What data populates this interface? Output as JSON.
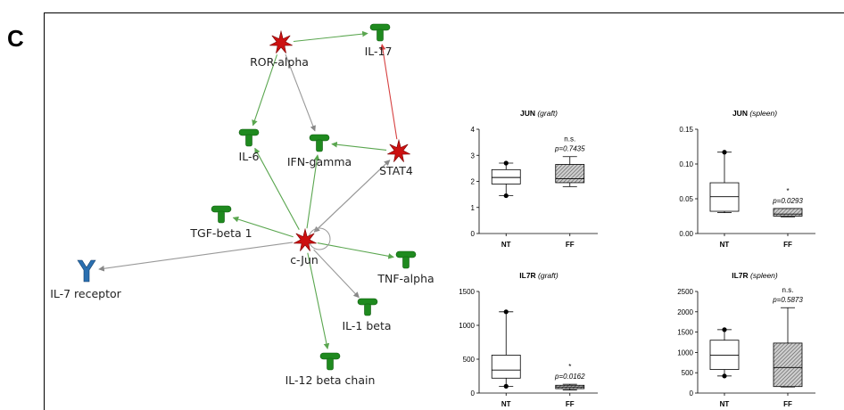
{
  "panel_letter": "C",
  "network": {
    "nodes": [
      {
        "id": "ror",
        "label": "ROR-alpha",
        "kind": "tf"
      },
      {
        "id": "il17",
        "label": "IL-17",
        "kind": "cytokine"
      },
      {
        "id": "il6",
        "label": "IL-6",
        "kind": "cytokine"
      },
      {
        "id": "ifng",
        "label": "IFN-gamma",
        "kind": "cytokine"
      },
      {
        "id": "stat4",
        "label": "STAT4",
        "kind": "tf"
      },
      {
        "id": "tgfb",
        "label": "TGF-beta 1",
        "kind": "cytokine"
      },
      {
        "id": "cjun",
        "label": "c-Jun",
        "kind": "tf"
      },
      {
        "id": "il7r",
        "label": "IL-7 receptor",
        "kind": "receptor"
      },
      {
        "id": "tnfa",
        "label": "TNF-alpha",
        "kind": "cytokine"
      },
      {
        "id": "il1b",
        "label": "IL-1 beta",
        "kind": "cytokine"
      },
      {
        "id": "il12b",
        "label": "IL-12 beta chain",
        "kind": "cytokine"
      }
    ],
    "edges": [
      {
        "from": "ror",
        "to": "il17",
        "color": "green"
      },
      {
        "from": "ror",
        "to": "il6",
        "color": "green"
      },
      {
        "from": "ror",
        "to": "ifng",
        "color": "gray"
      },
      {
        "from": "stat4",
        "to": "il17",
        "color": "red"
      },
      {
        "from": "stat4",
        "to": "ifng",
        "color": "green"
      },
      {
        "from": "stat4",
        "to": "cjun",
        "color": "gray"
      },
      {
        "from": "cjun",
        "to": "stat4",
        "color": "gray"
      },
      {
        "from": "cjun",
        "to": "il6",
        "color": "green"
      },
      {
        "from": "cjun",
        "to": "ifng",
        "color": "green"
      },
      {
        "from": "cjun",
        "to": "tgfb",
        "color": "green"
      },
      {
        "from": "cjun",
        "to": "il7r",
        "color": "gray"
      },
      {
        "from": "cjun",
        "to": "tnfa",
        "color": "green"
      },
      {
        "from": "cjun",
        "to": "il1b",
        "color": "gray"
      },
      {
        "from": "cjun",
        "to": "il12b",
        "color": "green"
      }
    ],
    "colors": {
      "tf": "#cc1111",
      "cytokine": "#1f8a1f",
      "receptor": "#2a6fb0",
      "green_edge": "#5aa64f",
      "red_edge": "#d64040",
      "gray_edge": "#999999"
    }
  },
  "chart_data": [
    {
      "type": "boxplot",
      "title": "JUN",
      "subtitle": "(graft)",
      "categories": [
        "NT",
        "FF"
      ],
      "ylim": [
        0,
        4
      ],
      "yticks": [
        "0",
        "1",
        "2",
        "3",
        "4"
      ],
      "boxes": [
        {
          "min": 1.45,
          "q1": 1.9,
          "median": 2.15,
          "q3": 2.45,
          "max": 2.7,
          "outliers": [
            1.45,
            2.7
          ],
          "fill": "white"
        },
        {
          "min": 1.8,
          "q1": 1.95,
          "median": 2.1,
          "q3": 2.65,
          "max": 2.95,
          "outliers": [],
          "fill": "hatched"
        }
      ],
      "annotations": [
        {
          "category": "FF",
          "sig": "n.s.",
          "p": "p=0.7435"
        }
      ]
    },
    {
      "type": "boxplot",
      "title": "JUN",
      "subtitle": "(spleen)",
      "categories": [
        "NT",
        "FF"
      ],
      "ylim": [
        0,
        0.15
      ],
      "yticks": [
        "0.00",
        "0.05",
        "0.10",
        "0.15"
      ],
      "boxes": [
        {
          "min": 0.03,
          "q1": 0.032,
          "median": 0.053,
          "q3": 0.073,
          "max": 0.117,
          "outliers": [
            0.117
          ],
          "fill": "white"
        },
        {
          "min": 0.024,
          "q1": 0.025,
          "median": 0.028,
          "q3": 0.036,
          "max": 0.036,
          "outliers": [],
          "fill": "hatched"
        }
      ],
      "annotations": [
        {
          "category": "FF",
          "sig": "*",
          "p": "p=0.0293"
        }
      ]
    },
    {
      "type": "boxplot",
      "title": "IL7R",
      "subtitle": "(graft)",
      "categories": [
        "NT",
        "FF"
      ],
      "ylim": [
        0,
        1500
      ],
      "yticks": [
        "0",
        "500",
        "1000",
        "1500"
      ],
      "boxes": [
        {
          "min": 100,
          "q1": 220,
          "median": 340,
          "q3": 560,
          "max": 1200,
          "outliers": [
            100,
            1200
          ],
          "fill": "white"
        },
        {
          "min": 45,
          "q1": 65,
          "median": 90,
          "q3": 115,
          "max": 130,
          "outliers": [],
          "fill": "hatched"
        }
      ],
      "annotations": [
        {
          "category": "FF",
          "sig": "*",
          "p": "p=0.0162"
        }
      ]
    },
    {
      "type": "boxplot",
      "title": "IL7R",
      "subtitle": "(spleen)",
      "categories": [
        "NT",
        "FF"
      ],
      "ylim": [
        0,
        2500
      ],
      "yticks": [
        "0",
        "500",
        "1000",
        "1500",
        "2000",
        "2500"
      ],
      "boxes": [
        {
          "min": 420,
          "q1": 580,
          "median": 930,
          "q3": 1300,
          "max": 1560,
          "outliers": [
            420,
            1560
          ],
          "fill": "white"
        },
        {
          "min": 150,
          "q1": 160,
          "median": 630,
          "q3": 1230,
          "max": 2100,
          "outliers": [],
          "fill": "hatched"
        }
      ],
      "annotations": [
        {
          "category": "FF",
          "sig": "n.s.",
          "p": "p=0.5873"
        }
      ]
    }
  ]
}
